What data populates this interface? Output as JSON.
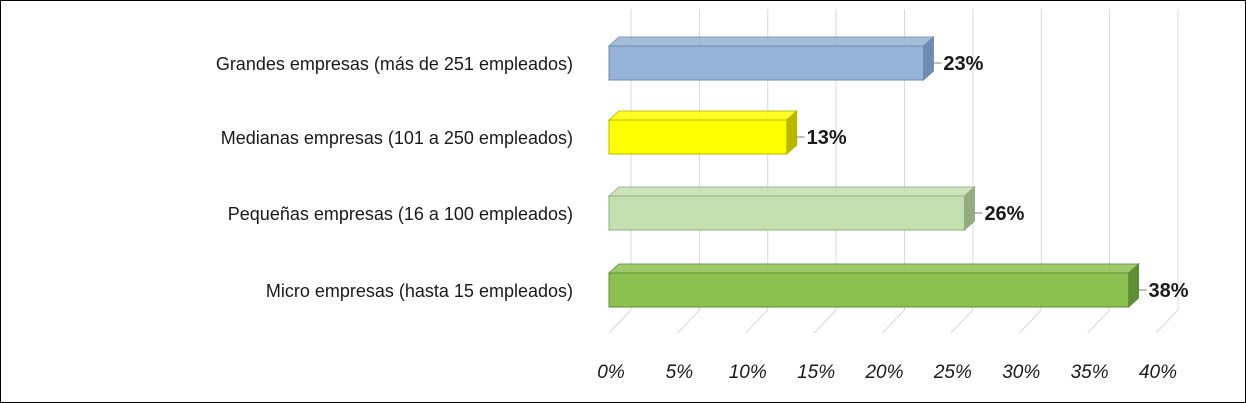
{
  "chart_data": {
    "type": "bar",
    "orientation": "horizontal",
    "categories": [
      "Grandes empresas (más de 251 empleados)",
      "Medianas empresas (101 a 250 empleados)",
      "Pequeñas  empresas (16 a 100 empleados)",
      "Micro empresas (hasta 15 empleados)"
    ],
    "values": [
      23,
      13,
      26,
      38
    ],
    "data_labels": [
      "23%",
      "13%",
      "26%",
      "38%"
    ],
    "bar_colors": [
      "#95b3d7",
      "#ffff00",
      "#c4dfb0",
      "#8cc152"
    ],
    "bar_edge_colors": [
      "#6f8bb0",
      "#b8b800",
      "#92ad80",
      "#5f8f35"
    ],
    "xlim": [
      0,
      40
    ],
    "xticks": [
      0,
      5,
      10,
      15,
      20,
      25,
      30,
      35,
      40
    ],
    "xtick_labels": [
      "0%",
      "5%",
      "10%",
      "15%",
      "20%",
      "25%",
      "30%",
      "35%",
      "40%"
    ],
    "title": "",
    "xlabel": "",
    "ylabel": "",
    "grid": true,
    "legend": "none",
    "style": "3d"
  }
}
